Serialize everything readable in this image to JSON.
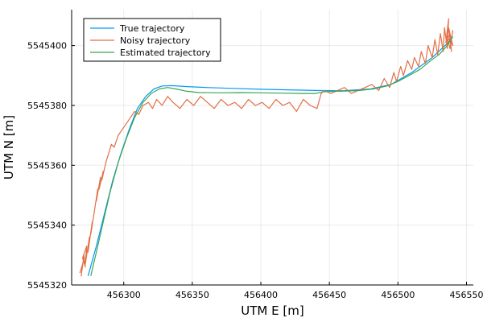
{
  "chart_data": {
    "type": "line",
    "title": "",
    "xlabel": "UTM E [m]",
    "ylabel": "UTM N [m]",
    "xlim": [
      456262,
      456555
    ],
    "ylim": [
      5545320,
      5545412
    ],
    "xticks": [
      456300,
      456350,
      456400,
      456450,
      456500,
      456550
    ],
    "xtick_labels": [
      "456300",
      "456350",
      "456400",
      "456450",
      "456500",
      "456550"
    ],
    "yticks": [
      5545320,
      5545340,
      5545360,
      5545380,
      5545400
    ],
    "ytick_labels": [
      "5545320",
      "5545340",
      "5545360",
      "5545380",
      "5545400"
    ],
    "grid": true,
    "legend_position": "top-left",
    "series": [
      {
        "name": "True trajectory",
        "color": "#009AFA",
        "x": [
          456274,
          456280,
          456286,
          456292,
          456298,
          456304,
          456310,
          456316,
          456322,
          456328,
          456335,
          456345,
          456360,
          456380,
          456400,
          456420,
          456440,
          456460,
          456480,
          456495,
          456510,
          456525,
          456539
        ],
        "y": [
          5545323,
          5545333,
          5545344,
          5545355,
          5545364,
          5545372,
          5545379,
          5545383,
          5545385.5,
          5545386.5,
          5545386.6,
          5545386.3,
          5545386,
          5545385.7,
          5545385.4,
          5545385.2,
          5545385,
          5545384.9,
          5545385.5,
          5545387,
          5545391,
          5545396,
          5545402
        ]
      },
      {
        "name": "Noisy trajectory",
        "color": "#E26F46",
        "x": [
          456268,
          456270,
          456269,
          456271,
          456272,
          456270,
          456273,
          456272,
          456275,
          456274,
          456277,
          456276,
          456279,
          456281,
          456280,
          456283,
          456282,
          456285,
          456284,
          456287,
          456289,
          456291,
          456293,
          456296,
          456299,
          456302,
          456305,
          456308,
          456311,
          456314,
          456318,
          456321,
          456324,
          456328,
          456332,
          456336,
          456341,
          456346,
          456351,
          456356,
          456361,
          456366,
          456371,
          456376,
          456381,
          456386,
          456391,
          456396,
          456401,
          456406,
          456411,
          456416,
          456421,
          456426,
          456431,
          456436,
          456441,
          456444,
          456446,
          456451,
          456456,
          456461,
          456466,
          456471,
          456476,
          456481,
          456486,
          456490,
          456494,
          456497,
          456499,
          456502,
          456504,
          456507,
          456510,
          456512,
          456515,
          456517,
          456520,
          456522,
          456525,
          456527,
          456529,
          456531,
          456533,
          456534,
          456536,
          456537,
          456535,
          456538,
          456539,
          456537,
          456540,
          456536,
          456538,
          456540,
          456539
        ],
        "y": [
          5545324,
          5545327,
          5545323,
          5545330,
          5545326,
          5545329,
          5545333,
          5545327,
          5545336,
          5545331,
          5545341,
          5545337,
          5545346,
          5545352,
          5545348,
          5545356,
          5545352,
          5545358,
          5545355,
          5545361,
          5545364,
          5545367,
          5545366,
          5545370,
          5545372,
          5545374,
          5545376,
          5545378,
          5545377,
          5545380,
          5545381,
          5545379,
          5545382,
          5545380,
          5545383,
          5545381,
          5545379,
          5545382,
          5545380,
          5545383,
          5545381,
          5545379,
          5545382,
          5545380,
          5545381,
          5545379,
          5545382,
          5545380,
          5545381,
          5545379,
          5545382,
          5545380,
          5545381,
          5545378,
          5545382,
          5545380,
          5545379,
          5545384,
          5545385,
          5545384,
          5545385,
          5545386,
          5545384,
          5545385,
          5545386,
          5545387,
          5545385,
          5545389,
          5545386,
          5545391,
          5545388,
          5545393,
          5545390,
          5545395,
          5545392,
          5545396,
          5545393,
          5545398,
          5545394,
          5545400,
          5545396,
          5545402,
          5545397,
          5545404,
          5545398,
          5545406,
          5545399,
          5545409,
          5545401,
          5545404,
          5545398,
          5545406,
          5545400,
          5545403,
          5545399,
          5545405,
          5545402
        ]
      },
      {
        "name": "Estimated trajectory",
        "color": "#3DA44E",
        "x": [
          456276,
          456280,
          456285,
          456290,
          456296,
          456302,
          456308,
          456314,
          456320,
          456326,
          456332,
          456338,
          456345,
          456355,
          456370,
          456385,
          456400,
          456415,
          456430,
          456440,
          456445,
          456452,
          456462,
          456472,
          456482,
          456492,
          456500,
          456508,
          456516,
          456524,
          456530,
          456536,
          456540
        ],
        "y": [
          5545323,
          5545331,
          5545341,
          5545351,
          5545361,
          5545369,
          5545376,
          5545381,
          5545384,
          5545385.5,
          5545386,
          5545385.5,
          5545384.8,
          5545384.3,
          5545384.2,
          5545384.3,
          5545384.2,
          5545384.1,
          5545384.0,
          5545384.0,
          5545384.5,
          5545384.7,
          5545384.8,
          5545385.0,
          5545385.5,
          5545386.5,
          5545388,
          5545390,
          5545392,
          5545395,
          5545397,
          5545400,
          5545403
        ]
      }
    ]
  }
}
